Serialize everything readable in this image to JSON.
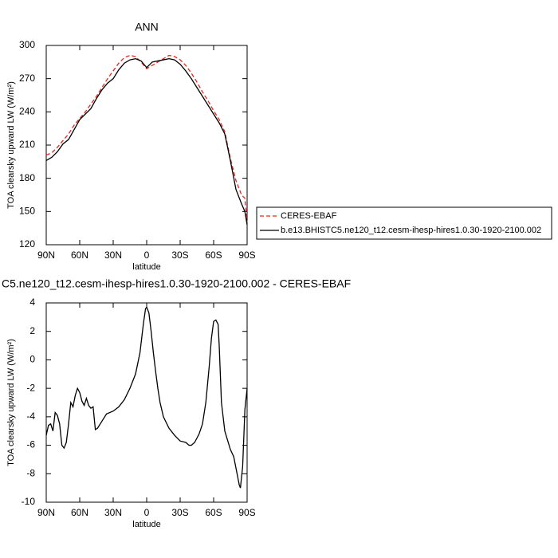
{
  "chart_data": [
    {
      "type": "line",
      "title": "ANN",
      "xlabel": "latitude",
      "ylabel": "TOA clearsky upward LW (W/m²)",
      "xlim": [
        90,
        -90
      ],
      "xticks": [
        {
          "value": 90,
          "label": "90N"
        },
        {
          "value": 60,
          "label": "60N"
        },
        {
          "value": 30,
          "label": "30N"
        },
        0,
        {
          "value": -30,
          "label": "30S"
        },
        {
          "value": -60,
          "label": "60S"
        },
        {
          "value": -90,
          "label": "90S"
        }
      ],
      "ylim": [
        120,
        300
      ],
      "yticks": [
        120,
        150,
        180,
        210,
        240,
        270,
        300
      ],
      "legend": "right",
      "series": [
        {
          "name": "CERES-EBAF",
          "color": "#e8241c",
          "line_style": "dashed",
          "x": [
            90,
            85,
            80,
            75,
            70,
            65,
            60,
            55,
            50,
            45,
            40,
            35,
            30,
            25,
            20,
            15,
            10,
            5,
            0,
            -5,
            -10,
            -15,
            -20,
            -25,
            -30,
            -35,
            -40,
            -45,
            -50,
            -55,
            -60,
            -65,
            -70,
            -75,
            -80,
            -85,
            -88,
            -90
          ],
          "values": [
            201,
            203,
            208,
            214,
            220,
            228,
            234,
            240,
            247,
            254,
            262,
            270,
            277,
            284,
            289,
            291,
            290,
            285,
            279,
            282,
            285,
            288,
            291,
            290,
            287,
            282,
            275,
            267,
            258,
            250,
            241,
            233,
            222,
            198,
            178,
            165,
            162,
            140
          ]
        },
        {
          "name": "b.e13.BHISTC5.ne120_t12.cesm-ihesp-hires1.0.30-1920-2100.002",
          "color": "#000000",
          "line_style": "solid",
          "x": [
            90,
            85,
            80,
            75,
            70,
            65,
            60,
            55,
            50,
            45,
            40,
            35,
            30,
            25,
            20,
            15,
            10,
            5,
            0,
            -5,
            -10,
            -15,
            -20,
            -25,
            -30,
            -35,
            -40,
            -45,
            -50,
            -55,
            -60,
            -65,
            -70,
            -75,
            -80,
            -85,
            -88,
            -90
          ],
          "values": [
            196,
            199,
            204,
            211,
            215,
            224,
            233,
            238,
            243,
            252,
            260,
            266,
            270,
            278,
            284,
            287,
            288,
            286,
            280,
            285,
            286,
            287,
            288,
            287,
            283,
            277,
            270,
            262,
            254,
            246,
            238,
            230,
            220,
            196,
            170,
            157,
            150,
            138
          ]
        }
      ]
    },
    {
      "type": "line",
      "title": "C5.ne120_t12.cesm-ihesp-hires1.0.30-1920-2100.002 - CERES-EBAF",
      "xlabel": "latitude",
      "ylabel": "TOA clearsky upward LW (W/m²)",
      "xlim": [
        90,
        -90
      ],
      "xticks": [
        {
          "value": 90,
          "label": "90N"
        },
        {
          "value": 60,
          "label": "60N"
        },
        {
          "value": 30,
          "label": "30N"
        },
        0,
        {
          "value": -30,
          "label": "30S"
        },
        {
          "value": -60,
          "label": "60S"
        },
        {
          "value": -90,
          "label": "90S"
        }
      ],
      "ylim": [
        -10,
        4
      ],
      "yticks": [
        -10,
        -8,
        -6,
        -4,
        -2,
        0,
        2,
        4
      ],
      "series": [
        {
          "color": "#000000",
          "line_style": "solid",
          "x": [
            90,
            88,
            86,
            84,
            82,
            80,
            78,
            76,
            74,
            72,
            70,
            68,
            66,
            64,
            62,
            60,
            58,
            56,
            54,
            52,
            50,
            48,
            46,
            44,
            40,
            36,
            30,
            25,
            20,
            15,
            10,
            6,
            3,
            1,
            0,
            -2,
            -4,
            -6,
            -8,
            -10,
            -12,
            -15,
            -20,
            -25,
            -30,
            -35,
            -38,
            -40,
            -43,
            -47,
            -50,
            -53,
            -56,
            -58,
            -60,
            -62,
            -64,
            -65,
            -67,
            -70,
            -75,
            -78,
            -81,
            -83,
            -84,
            -86,
            -88,
            -90
          ],
          "values": [
            -5.3,
            -4.6,
            -4.5,
            -5.0,
            -3.7,
            -3.9,
            -4.5,
            -6.0,
            -6.2,
            -5.8,
            -4.5,
            -3.0,
            -3.3,
            -2.5,
            -2.0,
            -2.3,
            -2.9,
            -3.2,
            -2.7,
            -3.2,
            -3.4,
            -3.3,
            -4.9,
            -4.8,
            -4.3,
            -3.8,
            -3.6,
            -3.3,
            -2.8,
            -2.0,
            -1.0,
            0.5,
            2.5,
            3.6,
            3.7,
            3.3,
            2.0,
            0.5,
            -0.8,
            -2.0,
            -3.0,
            -4.0,
            -4.8,
            -5.3,
            -5.7,
            -5.8,
            -6.0,
            -6.0,
            -5.8,
            -5.2,
            -4.5,
            -3.0,
            -0.5,
            1.5,
            2.7,
            2.8,
            2.5,
            1.0,
            -3.0,
            -5.0,
            -6.3,
            -6.8,
            -8.0,
            -8.8,
            -9.0,
            -7.5,
            -3.5,
            -2.0
          ]
        }
      ]
    }
  ]
}
